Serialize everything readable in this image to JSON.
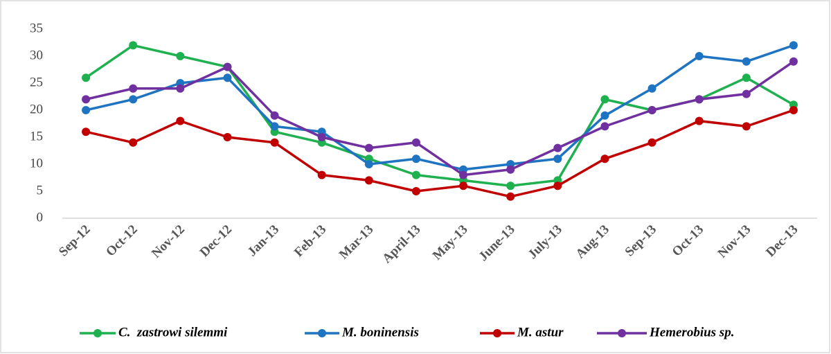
{
  "chart_data": {
    "type": "line",
    "categories": [
      "Sep-12",
      "Oct-12",
      "Nov-12",
      "Dec-12",
      "Jan-13",
      "Feb-13",
      "Mar-13",
      "April-13",
      "May-13",
      "June-13",
      "July-13",
      "Aug-13",
      "Sep-13",
      "Oct-13",
      "Nov-13",
      "Dec-13"
    ],
    "series": [
      {
        "name": "C.  zastrowi silemmi",
        "color": "#1fb04f",
        "values": [
          26,
          32,
          30,
          28,
          16,
          14,
          11,
          8,
          7,
          6,
          7,
          22,
          20,
          22,
          26,
          21
        ]
      },
      {
        "name": "M. boninensis",
        "color": "#1f74c2",
        "values": [
          20,
          22,
          25,
          26,
          17,
          16,
          10,
          11,
          9,
          10,
          11,
          19,
          24,
          30,
          29,
          32
        ]
      },
      {
        "name": "M. astur",
        "color": "#c00000",
        "values": [
          16,
          14,
          18,
          15,
          14,
          8,
          7,
          5,
          6,
          4,
          6,
          11,
          14,
          18,
          17,
          20
        ]
      },
      {
        "name": "Hemerobius sp.",
        "color": "#7030a0",
        "values": [
          22,
          24,
          24,
          28,
          19,
          15,
          13,
          14,
          8,
          9,
          13,
          17,
          20,
          22,
          23,
          29
        ]
      }
    ],
    "ylim": [
      0,
      35
    ],
    "yticks": [
      0,
      5,
      10,
      15,
      20,
      25,
      30,
      35
    ],
    "legend": "bottom"
  }
}
